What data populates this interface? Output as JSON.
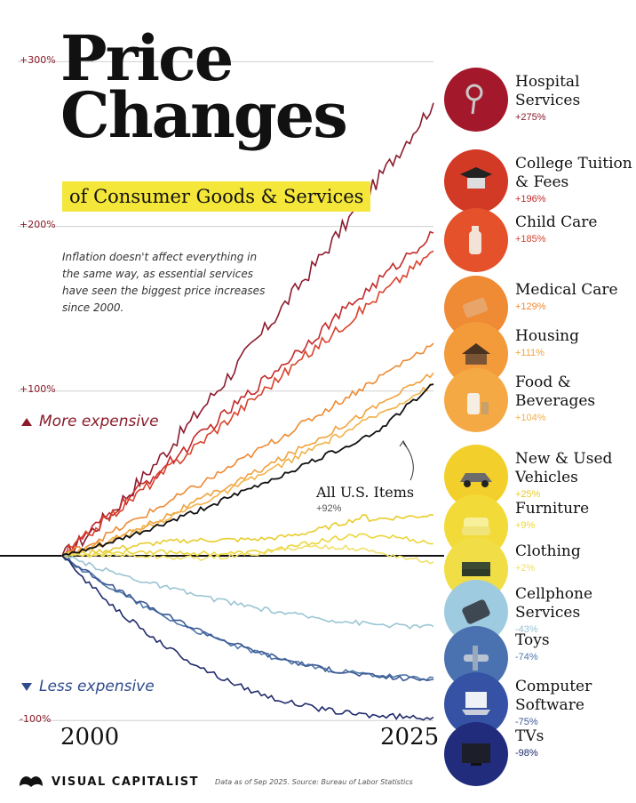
{
  "header": {
    "title_line1": "Price",
    "title_line2": "Changes",
    "subtitle": "of Consumer Goods & Services",
    "intro": "Inflation doesn't affect everything in the same way, as essential services have seen the biggest price increases since 2000."
  },
  "direction": {
    "more": "More expensive",
    "less": "Less expensive"
  },
  "footer": {
    "brand": "VISUAL CAPITALIST",
    "source": "Data as of Sep 2025. Source: Bureau of Labor Statistics"
  },
  "annotation": {
    "all_items_name": "All U.S. Items",
    "all_items_value": "+92%"
  },
  "chart_data": {
    "type": "line",
    "x_start": 2000,
    "x_end": 2025,
    "xticks": [
      "2000",
      "2025"
    ],
    "yticks": [
      {
        "value": 300,
        "label": "+300%"
      },
      {
        "value": 200,
        "label": "+200%"
      },
      {
        "value": 100,
        "label": "+100%"
      },
      {
        "value": -100,
        "label": "-100%"
      }
    ],
    "ylim": [
      -100,
      300
    ],
    "series": [
      {
        "name": "Hospital Services",
        "label": "+275%",
        "final": 275,
        "color": "#8b1b2e",
        "icon": "stethoscope-icon",
        "circle": "#a3192b"
      },
      {
        "name": "College Tuition & Fees",
        "label": "+196%",
        "final": 196,
        "color": "#c42b2b",
        "icon": "graduation-cap-icon",
        "circle": "#d33a25"
      },
      {
        "name": "Child Care",
        "label": "+185%",
        "final": 185,
        "color": "#d9422c",
        "icon": "baby-bottle-icon",
        "circle": "#e4512b"
      },
      {
        "name": "Medical Care",
        "label": "+129%",
        "final": 129,
        "color": "#ee8a34",
        "icon": "pill-bottle-icon",
        "circle": "#ef8a35"
      },
      {
        "name": "Housing",
        "label": "+111%",
        "final": 111,
        "color": "#f0a33e",
        "icon": "house-icon",
        "circle": "#f39a3b"
      },
      {
        "name": "Food & Beverages",
        "label": "+104%",
        "final": 104,
        "color": "#f2b24a",
        "icon": "milk-bottle-icon",
        "circle": "#f5a944"
      },
      {
        "name": "New & Used Vehicles",
        "label": "+25%",
        "final": 25,
        "color": "#e8cc2c",
        "icon": "car-icon",
        "circle": "#f2cf2b"
      },
      {
        "name": "Furniture",
        "label": "+9%",
        "final": 9,
        "color": "#ecd63a",
        "icon": "armchair-icon",
        "circle": "#f2da38"
      },
      {
        "name": "Clothing",
        "label": "+2%",
        "final": 2,
        "color": "#f0e06a",
        "icon": "folded-cloth-icon",
        "circle": "#f1de46"
      },
      {
        "name": "Cellphone Services",
        "label": "-43%",
        "final": -43,
        "color": "#9ac5d4",
        "icon": "cellphone-icon",
        "circle": "#9fcbe0"
      },
      {
        "name": "Toys",
        "label": "-74%",
        "final": -74,
        "color": "#4f78a8",
        "icon": "toy-plane-icon",
        "circle": "#4a72b0"
      },
      {
        "name": "Computer Software",
        "label": "-75%",
        "final": -75,
        "color": "#3d5a96",
        "icon": "laptop-icon",
        "circle": "#3652a4"
      },
      {
        "name": "TVs",
        "label": "-98%",
        "final": -98,
        "color": "#1f2a6b",
        "icon": "tv-icon",
        "circle": "#212c7c"
      },
      {
        "name": "All U.S. Items",
        "label": "+92%",
        "final": 92,
        "color": "#111111"
      }
    ]
  }
}
